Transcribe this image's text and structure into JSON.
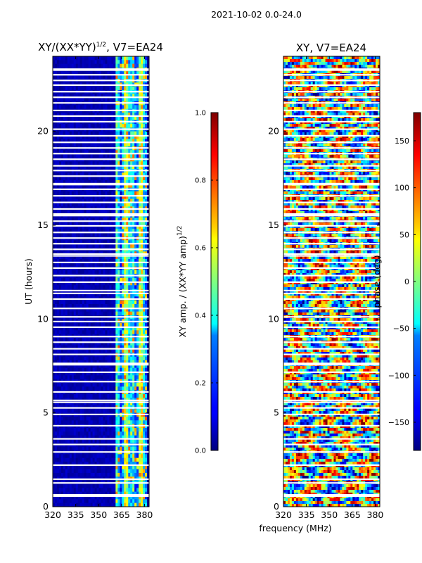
{
  "header": {
    "suptitle": "2021-10-02 0.0-24.0"
  },
  "chart_data": [
    {
      "type": "heatmap",
      "title": "XY/(XX*YY)^1/2, V7=EA24",
      "title_main": "XY/(XX*YY)",
      "title_sup": "1/2",
      "title_tail": ", V7=EA24",
      "ylabel": "UT (hours)",
      "xlabel": "",
      "xlim": [
        320,
        383
      ],
      "ylim": [
        0,
        24
      ],
      "xticks": [
        320,
        335,
        350,
        365,
        380
      ],
      "yticks": [
        0,
        5,
        10,
        15,
        20
      ],
      "colorbar": {
        "label": "XY amp. / (XX*YY amp)^1/2",
        "label_main": "XY amp. / (XX*YY amp)",
        "label_sup": "1/2",
        "range": [
          0.0,
          1.0
        ],
        "ticks": [
          "0.0",
          "0.2",
          "0.4",
          "0.6",
          "0.8",
          "1.0"
        ],
        "colormap": "jet"
      },
      "description_values": {
        "low_band_MHz": [
          320,
          361
        ],
        "low_band_value": 0.02,
        "high_band_MHz": [
          361,
          382
        ],
        "high_band_value_range": [
          0.2,
          0.8
        ]
      }
    },
    {
      "type": "heatmap",
      "title": "XY, V7=EA24",
      "ylabel": "",
      "xlabel": "frequency (MHz)",
      "xlim": [
        320,
        383
      ],
      "ylim": [
        0,
        24
      ],
      "xticks": [
        320,
        335,
        350,
        365,
        380
      ],
      "yticks": [
        0,
        5,
        10,
        15,
        20
      ],
      "colorbar": {
        "label": "phase (deg)",
        "range": [
          -180,
          180
        ],
        "ticks": [
          "−150",
          "−100",
          "−50",
          "0",
          "50",
          "100",
          "150"
        ],
        "tick_values": [
          -150,
          -100,
          -50,
          0,
          50,
          100,
          150
        ],
        "colormap": "jet"
      },
      "description_values": {
        "phase_range_deg": [
          -180,
          180
        ]
      }
    }
  ],
  "flagged_rows_hours": [
    0.55,
    0.62,
    1.25,
    1.45,
    2.2,
    2.9,
    3.3,
    3.6,
    4.3,
    4.9,
    5.25,
    5.55,
    5.65,
    6.1,
    6.65,
    7.15,
    7.55,
    7.62,
    8.1,
    8.4,
    8.75,
    9.05,
    9.55,
    9.85,
    10.1,
    10.55,
    11.05,
    11.35,
    11.5,
    11.95,
    12.3,
    12.7,
    13.0,
    13.35,
    13.45,
    13.7,
    14.0,
    14.3,
    14.6,
    14.95,
    15.2,
    15.5,
    15.58,
    15.85,
    16.2,
    16.55,
    16.9,
    17.15,
    17.2,
    17.6,
    17.9,
    18.15,
    18.5,
    18.8,
    19.1,
    19.4,
    19.75,
    20.1,
    20.5,
    20.8,
    21.1,
    21.5,
    21.8,
    22.1,
    22.45,
    22.7,
    23.0,
    23.25,
    23.3
  ]
}
